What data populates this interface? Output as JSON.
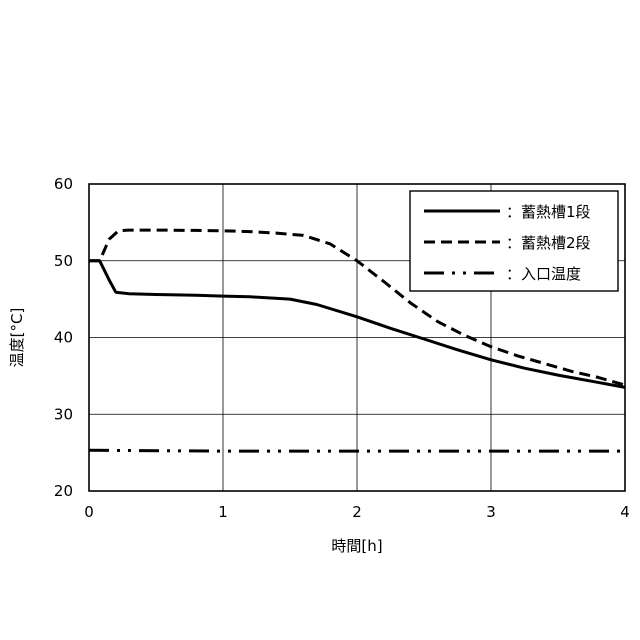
{
  "chart_data": {
    "type": "line",
    "title": "",
    "xlabel": "時間[h]",
    "ylabel": "温度[°C]",
    "xlim": [
      0,
      4
    ],
    "ylim": [
      20,
      60
    ],
    "xticks": [
      0,
      1,
      2,
      3,
      4
    ],
    "yticks": [
      20,
      30,
      40,
      50,
      60
    ],
    "xtick_labels": [
      "0",
      "1",
      "2",
      "3",
      "4"
    ],
    "ytick_labels": [
      "20",
      "30",
      "40",
      "50",
      "60"
    ],
    "grid": true,
    "legend_position": "top-right",
    "series": [
      {
        "name": "：蓄熱槽1段",
        "style": "solid",
        "color": "#000000",
        "points": [
          [
            0,
            50
          ],
          [
            0.08,
            50
          ],
          [
            0.15,
            47.5
          ],
          [
            0.2,
            45.9
          ],
          [
            0.3,
            45.7
          ],
          [
            0.5,
            45.6
          ],
          [
            0.8,
            45.5
          ],
          [
            1.0,
            45.4
          ],
          [
            1.2,
            45.3
          ],
          [
            1.5,
            45.0
          ],
          [
            1.7,
            44.3
          ],
          [
            2.0,
            42.7
          ],
          [
            2.25,
            41.2
          ],
          [
            2.5,
            39.8
          ],
          [
            2.75,
            38.4
          ],
          [
            3.0,
            37.1
          ],
          [
            3.25,
            36.0
          ],
          [
            3.5,
            35.1
          ],
          [
            3.75,
            34.3
          ],
          [
            4.0,
            33.5
          ]
        ]
      },
      {
        "name": "：蓄熱槽2段",
        "style": "dashed",
        "color": "#000000",
        "points": [
          [
            0,
            50
          ],
          [
            0.08,
            50
          ],
          [
            0.15,
            52.8
          ],
          [
            0.22,
            53.9
          ],
          [
            0.3,
            54.0
          ],
          [
            0.5,
            54.0
          ],
          [
            0.8,
            53.95
          ],
          [
            1.0,
            53.9
          ],
          [
            1.2,
            53.8
          ],
          [
            1.4,
            53.6
          ],
          [
            1.6,
            53.3
          ],
          [
            1.8,
            52.2
          ],
          [
            2.0,
            50.0
          ],
          [
            2.2,
            47.3
          ],
          [
            2.4,
            44.5
          ],
          [
            2.6,
            42.1
          ],
          [
            2.8,
            40.3
          ],
          [
            3.0,
            38.8
          ],
          [
            3.2,
            37.6
          ],
          [
            3.4,
            36.6
          ],
          [
            3.6,
            35.6
          ],
          [
            3.8,
            34.8
          ],
          [
            4.0,
            33.8
          ]
        ]
      },
      {
        "name": "：入口温度",
        "style": "dashdotdot",
        "color": "#000000",
        "points": [
          [
            0,
            25.3
          ],
          [
            1.0,
            25.2
          ],
          [
            2.0,
            25.2
          ],
          [
            3.0,
            25.2
          ],
          [
            4.0,
            25.2
          ]
        ]
      }
    ]
  }
}
